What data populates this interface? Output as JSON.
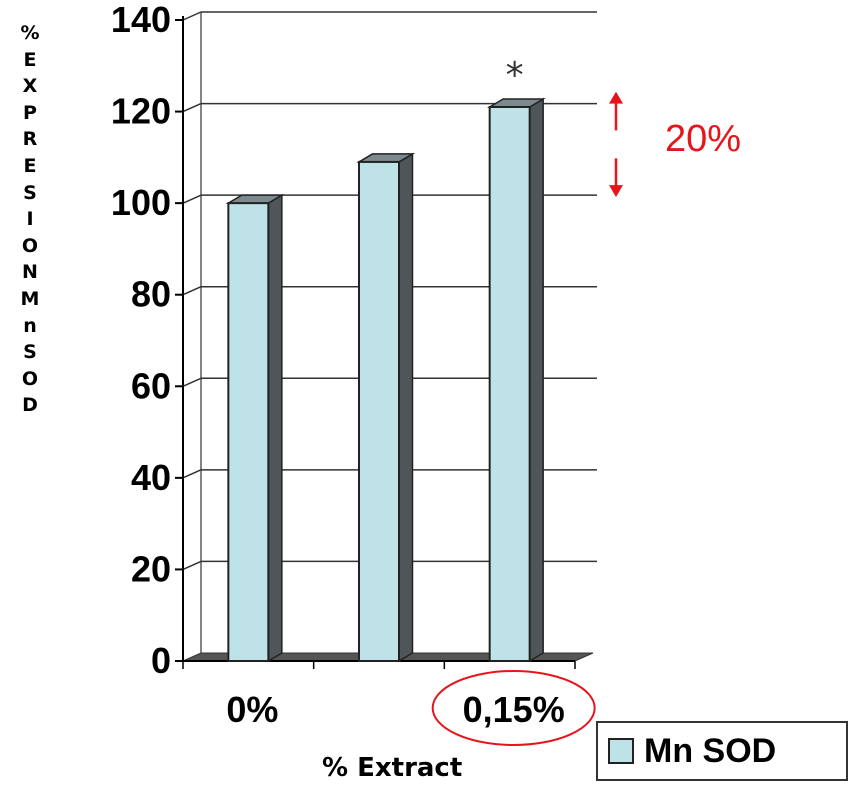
{
  "chart_data": {
    "type": "bar",
    "categories": [
      "0%",
      "",
      "0,15%"
    ],
    "series": [
      {
        "name": "Mn SOD",
        "values": [
          100,
          109,
          121
        ]
      }
    ],
    "ylim": [
      0,
      140
    ],
    "yticks": [
      "0",
      "20",
      "40",
      "60",
      "80",
      "100",
      "120",
      "140"
    ],
    "ylabel": "% E X P R E S I O N M n S O D",
    "ylabel_chars": [
      "%",
      "E",
      "X",
      "P",
      "R",
      "E",
      "S",
      "I",
      "O",
      "N",
      "M",
      "n",
      "S",
      "O",
      "D"
    ],
    "xlabel": "% Extract",
    "grid": true,
    "legend": "bottom-right",
    "annotations": {
      "significance_mark": "*",
      "difference_label": "20%"
    },
    "highlighted_category": "0,15%",
    "colors": {
      "bar_front": "#bfe2e8",
      "bar_side": "#4f5659",
      "bar_top": "#7c8a8e",
      "annotation": "#e8141c"
    }
  }
}
